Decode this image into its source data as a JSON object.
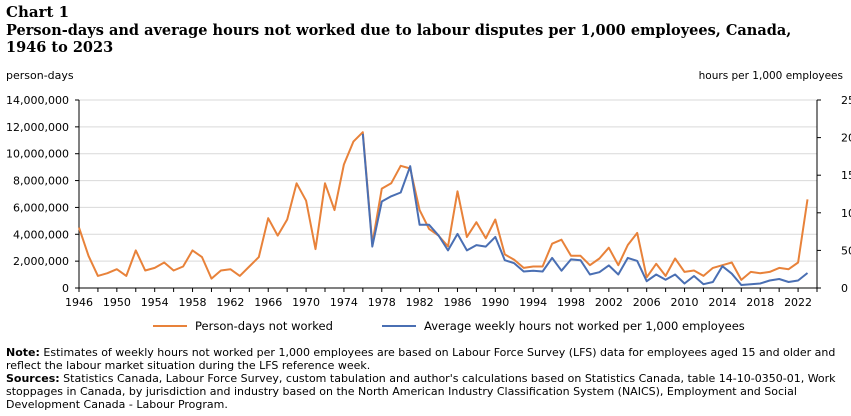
{
  "chart_label": "Chart 1",
  "title": "Person-days and average hours not worked due to labour disputes per 1,000 employees, Canada, 1946 to 2023",
  "note_label": "Note:",
  "note_text": "Estimates of weekly hours not worked per 1,000 employees are based on Labour Force Survey (LFS) data for employees aged 15 and older and reflect the labour market situation during the LFS reference week.",
  "sources_label": "Sources:",
  "sources_text": "Statistics Canada, Labour Force Survey, custom tabulation and author's calculations based on Statistics Canada, table 14-10-0350-01, Work stoppages in Canada, by jurisdiction and industry based on the North American Industry Classification System (NAICS), Employment and Social Development Canada - Labour Program.",
  "colors": {
    "person_days": "#e8823a",
    "hours": "#4a6fb3",
    "grid": "#d9d9d9"
  },
  "chart_data": {
    "type": "line",
    "title": "Person-days and average hours not worked due to labour disputes per 1,000 employees, Canada, 1946 to 2023",
    "ylabel": "person-days",
    "y2label": "hours per 1,000 employees",
    "ylim": [
      0,
      14000000
    ],
    "y2lim": [
      0,
      250
    ],
    "yticks": [
      "0",
      "2,000,000",
      "4,000,000",
      "6,000,000",
      "8,000,000",
      "10,000,000",
      "12,000,000",
      "14,000,000"
    ],
    "y2ticks": [
      "0",
      "50",
      "100",
      "150",
      "200",
      "250"
    ],
    "xticks": [
      "1946",
      "1950",
      "1954",
      "1958",
      "1962",
      "1966",
      "1970",
      "1974",
      "1978",
      "1982",
      "1986",
      "1990",
      "1994",
      "1998",
      "2002",
      "2006",
      "2010",
      "2014",
      "2018",
      "2022"
    ],
    "grid": true,
    "legend_position": "bottom",
    "series": [
      {
        "name": "Person-days not worked",
        "axis": "left",
        "x": [
          1946,
          1947,
          1948,
          1949,
          1950,
          1951,
          1952,
          1953,
          1954,
          1955,
          1956,
          1957,
          1958,
          1959,
          1960,
          1961,
          1962,
          1963,
          1964,
          1965,
          1966,
          1967,
          1968,
          1969,
          1970,
          1971,
          1972,
          1973,
          1974,
          1975,
          1976,
          1977,
          1978,
          1979,
          1980,
          1981,
          1982,
          1983,
          1984,
          1985,
          1986,
          1987,
          1988,
          1989,
          1990,
          1991,
          1992,
          1993,
          1994,
          1995,
          1996,
          1997,
          1998,
          1999,
          2000,
          2001,
          2002,
          2003,
          2004,
          2005,
          2006,
          2007,
          2008,
          2009,
          2010,
          2011,
          2012,
          2013,
          2014,
          2015,
          2016,
          2017,
          2018,
          2019,
          2020,
          2021,
          2022,
          2023
        ],
        "values": [
          4500000,
          2400000,
          900000,
          1100000,
          1400000,
          900000,
          2800000,
          1300000,
          1500000,
          1900000,
          1300000,
          1600000,
          2800000,
          2300000,
          700000,
          1300000,
          1400000,
          900000,
          1600000,
          2300000,
          5200000,
          3900000,
          5100000,
          7800000,
          6500000,
          2900000,
          7800000,
          5800000,
          9200000,
          10900000,
          11600000,
          3300000,
          7400000,
          7800000,
          9100000,
          8900000,
          5800000,
          4400000,
          3900000,
          3100000,
          7200000,
          3800000,
          4900000,
          3700000,
          5100000,
          2500000,
          2100000,
          1500000,
          1600000,
          1600000,
          3300000,
          3600000,
          2400000,
          2400000,
          1700000,
          2200000,
          3000000,
          1700000,
          3200000,
          4100000,
          800000,
          1800000,
          900000,
          2200000,
          1200000,
          1300000,
          900000,
          1500000,
          1700000,
          1900000,
          600000,
          1200000,
          1100000,
          1200000,
          1500000,
          1400000,
          1900000,
          6600000
        ]
      },
      {
        "name": "Average weekly hours not worked per 1,000 employees",
        "axis": "right",
        "x": [
          1976,
          1977,
          1978,
          1979,
          1980,
          1981,
          1982,
          1983,
          1984,
          1985,
          1986,
          1987,
          1988,
          1989,
          1990,
          1991,
          1992,
          1993,
          1994,
          1995,
          1996,
          1997,
          1998,
          1999,
          2000,
          2001,
          2002,
          2003,
          2004,
          2005,
          2006,
          2007,
          2008,
          2009,
          2010,
          2011,
          2012,
          2013,
          2014,
          2015,
          2016,
          2017,
          2018,
          2019,
          2020,
          2021,
          2022,
          2023
        ],
        "values": [
          205,
          55,
          115,
          122,
          127,
          162,
          84,
          84,
          70,
          50,
          72,
          50,
          57,
          55,
          68,
          37,
          33,
          22,
          23,
          22,
          40,
          23,
          38,
          37,
          18,
          21,
          30,
          18,
          40,
          36,
          9,
          18,
          11,
          18,
          6,
          16,
          5,
          8,
          29,
          19,
          4,
          5,
          6,
          10,
          12,
          8,
          10,
          20
        ]
      }
    ]
  }
}
